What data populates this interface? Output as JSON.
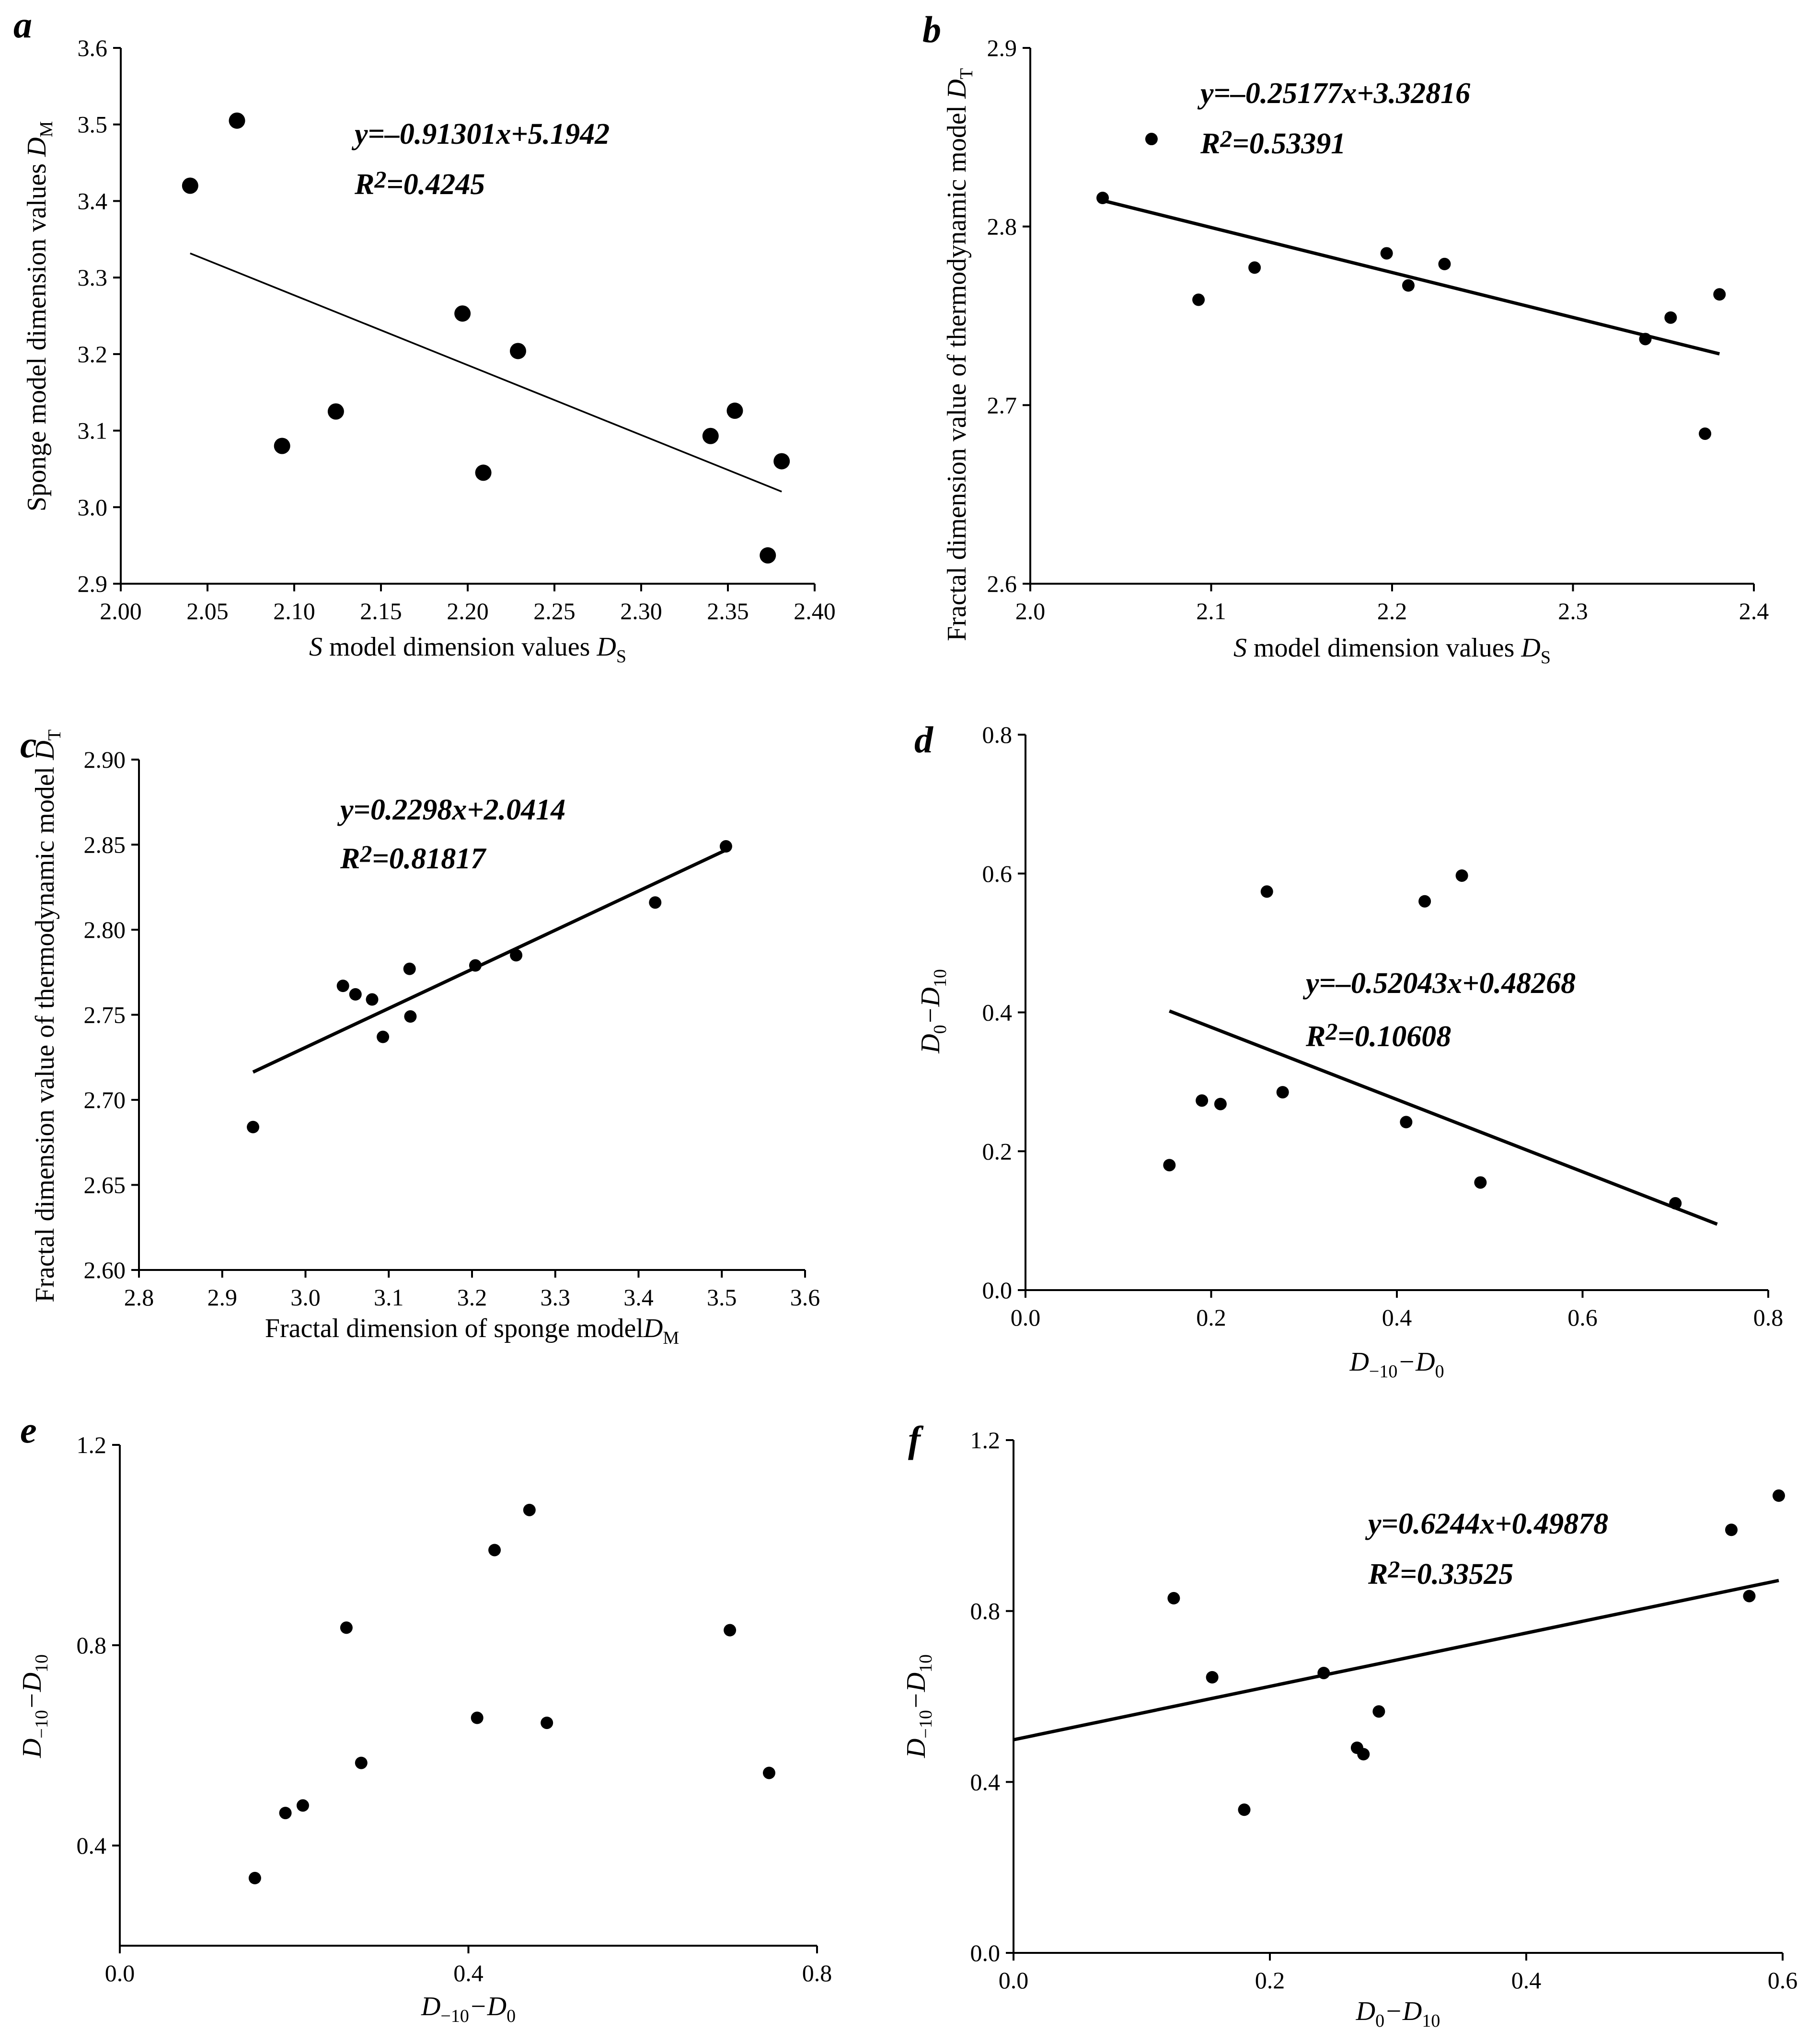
{
  "chart_data": [
    {
      "id": "a",
      "type": "scatter",
      "panel_letter": "a",
      "xlabel": {
        "pre": "S",
        "mid": " model dimension values ",
        "var": "D",
        "sub": "S"
      },
      "ylabel": {
        "pre": "",
        "mid": "Sponge model dimension values ",
        "var": "D",
        "sub": "M"
      },
      "xlim": [
        2.0,
        2.4
      ],
      "ylim": [
        2.9,
        3.6
      ],
      "xticks": [
        "2.00",
        "2.05",
        "2.10",
        "2.15",
        "2.20",
        "2.25",
        "2.30",
        "2.35",
        "2.40"
      ],
      "yticks": [
        "2.9",
        "3.0",
        "3.1",
        "3.2",
        "3.3",
        "3.4",
        "3.5",
        "3.6"
      ],
      "points": [
        [
          2.04,
          3.42
        ],
        [
          2.067,
          3.505
        ],
        [
          2.093,
          3.08
        ],
        [
          2.124,
          3.125
        ],
        [
          2.197,
          3.253
        ],
        [
          2.209,
          3.045
        ],
        [
          2.229,
          3.204
        ],
        [
          2.34,
          3.093
        ],
        [
          2.354,
          3.126
        ],
        [
          2.373,
          2.937
        ],
        [
          2.381,
          3.06
        ]
      ],
      "fit": {
        "slope": -0.91301,
        "intercept": 5.1942,
        "x_range": [
          2.04,
          2.381
        ]
      },
      "equation": "y=–0.91301x+5.1942",
      "r2_label": "R",
      "r2_power": "2",
      "r2_value": "=0.4245"
    },
    {
      "id": "b",
      "type": "scatter",
      "panel_letter": "b",
      "xlabel": {
        "pre": "S",
        "mid": " model dimension values ",
        "var": "D",
        "sub": "S"
      },
      "ylabel": {
        "pre": "",
        "mid": "Fractal dimension value of thermodynamic model ",
        "var": "D",
        "sub": "T"
      },
      "xlim": [
        2.0,
        2.4
      ],
      "ylim": [
        2.6,
        2.9
      ],
      "xticks": [
        "2.0",
        "2.1",
        "2.2",
        "2.3",
        "2.4"
      ],
      "yticks": [
        "2.6",
        "2.7",
        "2.8",
        "2.9"
      ],
      "points": [
        [
          2.04,
          2.816
        ],
        [
          2.067,
          2.849
        ],
        [
          2.093,
          2.759
        ],
        [
          2.124,
          2.777
        ],
        [
          2.197,
          2.785
        ],
        [
          2.209,
          2.767
        ],
        [
          2.229,
          2.779
        ],
        [
          2.34,
          2.737
        ],
        [
          2.354,
          2.749
        ],
        [
          2.373,
          2.684
        ],
        [
          2.381,
          2.762
        ]
      ],
      "fit": {
        "slope": -0.25177,
        "intercept": 3.32816,
        "x_range": [
          2.04,
          2.381
        ]
      },
      "equation": "y=–0.25177x+3.32816",
      "r2_label": "R",
      "r2_power": "2",
      "r2_value": "=0.53391"
    },
    {
      "id": "c",
      "type": "scatter",
      "panel_letter": "c",
      "xlabel": {
        "pre": "",
        "mid": "Fractal dimension of sponge model",
        "var": "D",
        "sub": "M"
      },
      "ylabel": {
        "pre": "",
        "mid": "Fractal dimension value of thermodynamic model ",
        "var": "D",
        "sub": "T"
      },
      "xlim": [
        2.8,
        3.6
      ],
      "ylim": [
        2.6,
        2.9
      ],
      "xticks": [
        "2.8",
        "2.9",
        "3.0",
        "3.1",
        "3.2",
        "3.3",
        "3.4",
        "3.5",
        "3.6"
      ],
      "yticks": [
        "2.60",
        "2.65",
        "2.70",
        "2.75",
        "2.80",
        "2.85",
        "2.90"
      ],
      "points": [
        [
          2.937,
          2.684
        ],
        [
          3.045,
          2.767
        ],
        [
          3.06,
          2.762
        ],
        [
          3.08,
          2.759
        ],
        [
          3.093,
          2.737
        ],
        [
          3.125,
          2.777
        ],
        [
          3.126,
          2.749
        ],
        [
          3.204,
          2.779
        ],
        [
          3.253,
          2.785
        ],
        [
          3.42,
          2.816
        ],
        [
          3.505,
          2.849
        ]
      ],
      "fit": {
        "slope": 0.2298,
        "intercept": 2.0414,
        "x_range": [
          2.937,
          3.505
        ]
      },
      "equation": "y=0.2298x+2.0414",
      "r2_label": "R",
      "r2_power": "2",
      "r2_value": "=0.81817"
    },
    {
      "id": "d",
      "type": "scatter",
      "panel_letter": "d",
      "xlabel": {
        "pre": "",
        "mid": "",
        "var": "D",
        "sub": "−10",
        "rest": "−D",
        "sub2": "0"
      },
      "ylabel": {
        "pre": "",
        "mid": "",
        "var": "D",
        "sub": "0",
        "rest": "−D",
        "sub2": "10"
      },
      "xlim": [
        0.0,
        0.8
      ],
      "ylim": [
        0.0,
        0.8
      ],
      "xticks": [
        "0.0",
        "0.2",
        "0.4",
        "0.6",
        "0.8"
      ],
      "yticks": [
        "0.0",
        "0.2",
        "0.4",
        "0.6",
        "0.8"
      ],
      "points": [
        [
          0.155,
          0.18
        ],
        [
          0.19,
          0.273
        ],
        [
          0.21,
          0.268
        ],
        [
          0.26,
          0.574
        ],
        [
          0.277,
          0.285
        ],
        [
          0.41,
          0.242
        ],
        [
          0.43,
          0.56
        ],
        [
          0.47,
          0.597
        ],
        [
          0.49,
          0.155
        ],
        [
          0.7,
          0.125
        ]
      ],
      "fit": {
        "slope": -0.52043,
        "intercept": 0.48268,
        "x_range": [
          0.155,
          0.745
        ]
      },
      "equation": "y=–0.52043x+0.48268",
      "r2_label": "R",
      "r2_power": "2",
      "r2_value": "=0.10608"
    },
    {
      "id": "e",
      "type": "scatter",
      "panel_letter": "e",
      "xlabel": {
        "pre": "",
        "mid": "",
        "var": "D",
        "sub": "−10",
        "rest": "−D",
        "sub2": "0"
      },
      "ylabel": {
        "pre": "",
        "mid": "",
        "var": "D",
        "sub": "−10",
        "rest": "−D",
        "sub2": "10"
      },
      "xlim": [
        0.0,
        0.8
      ],
      "ylim": [
        0.2,
        1.2
      ],
      "xticks": [
        "0.0",
        "0.4",
        "0.8"
      ],
      "yticks": [
        "0.4",
        "0.8",
        "1.2"
      ],
      "points": [
        [
          0.155,
          0.335
        ],
        [
          0.19,
          0.465
        ],
        [
          0.21,
          0.48
        ],
        [
          0.26,
          0.835
        ],
        [
          0.277,
          0.565
        ],
        [
          0.41,
          0.655
        ],
        [
          0.43,
          0.99
        ],
        [
          0.47,
          1.07
        ],
        [
          0.49,
          0.645
        ],
        [
          0.7,
          0.83
        ],
        [
          0.745,
          0.545
        ]
      ],
      "fit": null,
      "equation": "",
      "r2_label": "",
      "r2_power": "",
      "r2_value": ""
    },
    {
      "id": "f",
      "type": "scatter",
      "panel_letter": "f",
      "xlabel": {
        "pre": "",
        "mid": "",
        "var": "D",
        "sub": "0",
        "rest": "−D",
        "sub2": "10"
      },
      "ylabel": {
        "pre": "",
        "mid": "",
        "var": "D",
        "sub": "−10",
        "rest": "−D",
        "sub2": "10"
      },
      "xlim": [
        0.0,
        0.6
      ],
      "ylim": [
        0.0,
        1.2
      ],
      "xticks": [
        "0.0",
        "0.2",
        "0.4",
        "0.6"
      ],
      "yticks": [
        "0.0",
        "0.4",
        "0.8",
        "1.2"
      ],
      "points": [
        [
          0.125,
          0.83
        ],
        [
          0.155,
          0.645
        ],
        [
          0.18,
          0.335
        ],
        [
          0.242,
          0.655
        ],
        [
          0.268,
          0.48
        ],
        [
          0.273,
          0.465
        ],
        [
          0.285,
          0.565
        ],
        [
          0.56,
          0.99
        ],
        [
          0.574,
          0.835
        ],
        [
          0.597,
          1.07
        ]
      ],
      "fit": {
        "slope": 0.6244,
        "intercept": 0.49878,
        "x_range": [
          0.0,
          0.597
        ]
      },
      "equation": "y=0.6244x+0.49878",
      "r2_label": "R",
      "r2_power": "2",
      "r2_value": "=0.33525"
    }
  ]
}
